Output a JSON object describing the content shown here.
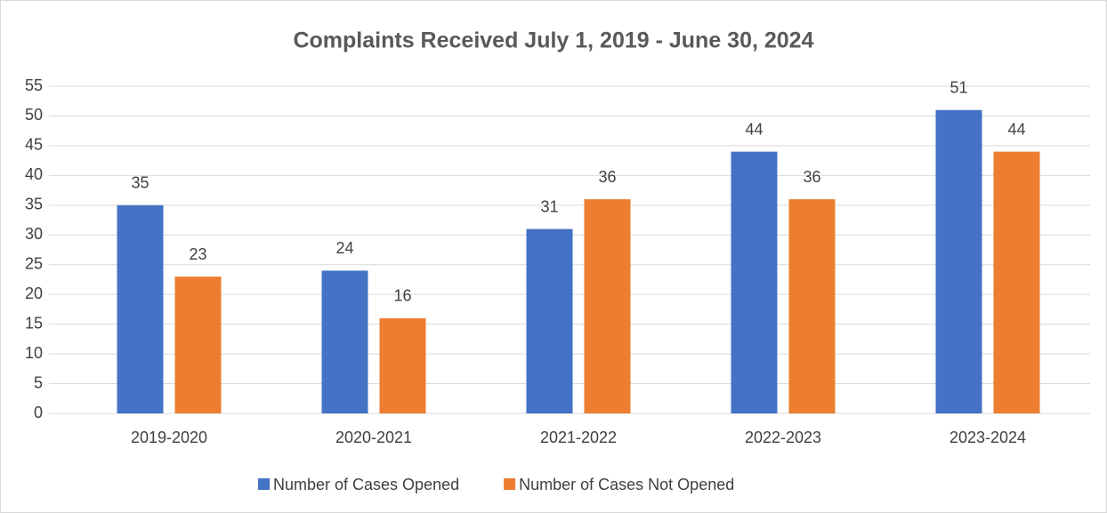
{
  "chart_data": {
    "type": "bar",
    "title": "Complaints Received July 1, 2019 - June 30, 2024",
    "categories": [
      "2019-2020",
      "2020-2021",
      "2021-2022",
      "2022-2023",
      "2023-2024"
    ],
    "series": [
      {
        "name": "Number of Cases Opened",
        "color": "#4472c4",
        "values": [
          35,
          24,
          31,
          44,
          51
        ]
      },
      {
        "name": "Number of Cases Not Opened",
        "color": "#ed7d31",
        "values": [
          23,
          16,
          36,
          36,
          44
        ]
      }
    ],
    "ylim": [
      0,
      55
    ],
    "yticks": [
      0,
      5,
      10,
      15,
      20,
      25,
      30,
      35,
      40,
      45,
      50,
      55
    ],
    "grid": true,
    "legend": "bottom"
  }
}
